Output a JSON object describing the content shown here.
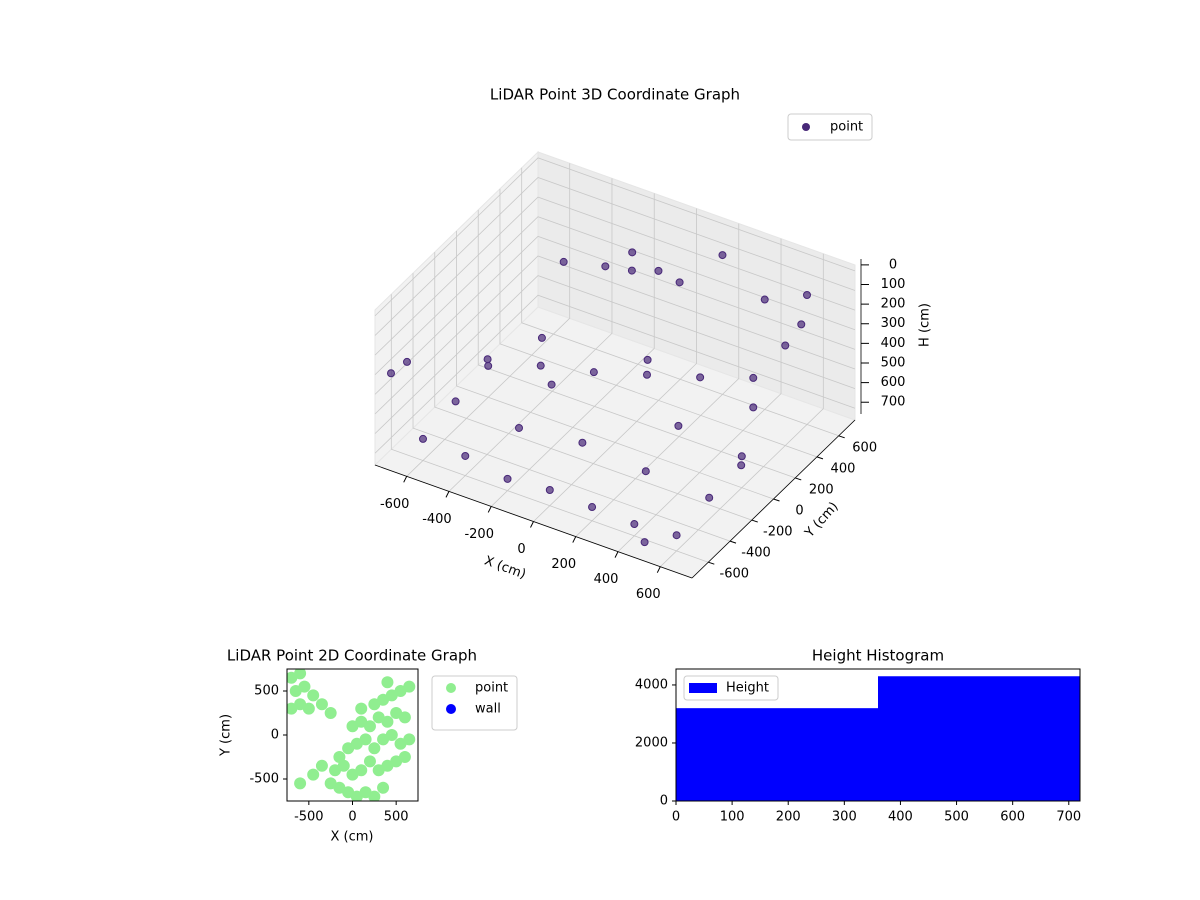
{
  "chart_data": [
    {
      "type": "scatter3d",
      "title": "LiDAR Point 3D Coordinate Graph",
      "xlabel": "X (cm)",
      "ylabel": "Y (cm)",
      "zlabel": "H (cm)",
      "xlim": [
        -750,
        750
      ],
      "ylim": [
        -750,
        750
      ],
      "zlim": [
        760,
        -30
      ],
      "xticks": [
        -600,
        -400,
        -200,
        0,
        200,
        400,
        600
      ],
      "yticks": [
        -600,
        -400,
        -200,
        0,
        200,
        400,
        600
      ],
      "zticks": [
        0,
        100,
        200,
        300,
        400,
        500,
        600,
        700
      ],
      "grid": true,
      "legend": "upper right",
      "series": [
        {
          "name": "point",
          "color": "#482878",
          "x": [
            -600,
            -400,
            -200,
            0,
            200,
            400,
            600,
            -600,
            -300,
            0,
            300,
            600,
            -600,
            -300,
            300,
            600,
            -500,
            0,
            500,
            -500,
            -300,
            -100,
            100,
            300,
            500,
            600,
            650,
            -200,
            -100,
            0,
            100,
            -150,
            -700,
            -650,
            200,
            600,
            -500,
            400,
            700,
            500
          ],
          "y": [
            -600,
            -600,
            -600,
            -600,
            -600,
            -600,
            -600,
            -300,
            -300,
            -300,
            -300,
            -300,
            0,
            0,
            0,
            0,
            300,
            300,
            300,
            -200,
            -100,
            0,
            100,
            200,
            300,
            400,
            450,
            300,
            350,
            400,
            400,
            450,
            -700,
            -650,
            600,
            600,
            500,
            600,
            -200,
            -700
          ],
          "z": [
            650,
            660,
            700,
            680,
            690,
            700,
            680,
            620,
            640,
            600,
            630,
            650,
            600,
            580,
            560,
            600,
            580,
            500,
            550,
            420,
            430,
            440,
            430,
            420,
            400,
            250,
            150,
            100,
            110,
            100,
            120,
            90,
            300,
            250,
            50,
            100,
            300,
            200,
            500,
            700
          ]
        }
      ]
    },
    {
      "type": "scatter",
      "title": "LiDAR Point 2D Coordinate Graph",
      "xlabel": "X (cm)",
      "ylabel": "Y (cm)",
      "xlim": [
        -750,
        750
      ],
      "ylim": [
        -750,
        750
      ],
      "xticks": [
        -500,
        0,
        500
      ],
      "yticks": [
        -500,
        0,
        500
      ],
      "legend": "outside right",
      "series": [
        {
          "name": "point",
          "color": "#90ee90",
          "x": [
            -250,
            -150,
            -50,
            50,
            150,
            250,
            350,
            -200,
            -100,
            0,
            100,
            200,
            300,
            400,
            500,
            600,
            -50,
            50,
            150,
            250,
            350,
            450,
            550,
            650,
            0,
            100,
            200,
            300,
            400,
            500,
            600,
            100,
            250,
            350,
            450,
            550,
            400,
            650,
            -350,
            -150,
            -700,
            -600,
            -500,
            -650,
            -550,
            -700,
            -450,
            -600,
            -350,
            -250,
            -600,
            -450
          ],
          "y": [
            -550,
            -600,
            -650,
            -700,
            -650,
            -700,
            -600,
            -400,
            -350,
            -450,
            -400,
            -300,
            -400,
            -350,
            -300,
            -250,
            -150,
            -100,
            -50,
            -150,
            -50,
            0,
            -100,
            -50,
            100,
            150,
            100,
            200,
            150,
            250,
            200,
            300,
            350,
            400,
            450,
            500,
            600,
            550,
            -350,
            -250,
            300,
            350,
            300,
            500,
            550,
            650,
            450,
            700,
            350,
            250,
            -550,
            -450
          ]
        },
        {
          "name": "wall",
          "color": "#0000ff",
          "x": [],
          "y": []
        }
      ]
    },
    {
      "type": "histogram",
      "title": "Height Histogram",
      "label": "Height",
      "color": "#0000ff",
      "bins": [
        0,
        360,
        720
      ],
      "counts": [
        3200,
        4300
      ],
      "xlim": [
        0,
        720
      ],
      "ylim": [
        0,
        4550
      ],
      "xticks": [
        0,
        100,
        200,
        300,
        400,
        500,
        600,
        700
      ],
      "yticks": [
        0,
        2000,
        4000
      ],
      "legend": "upper left"
    }
  ]
}
